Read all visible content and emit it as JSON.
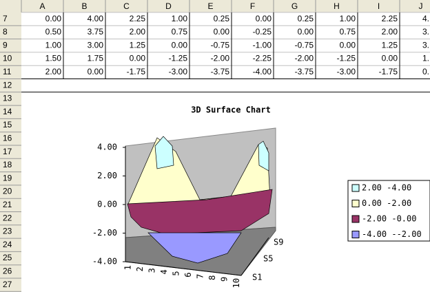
{
  "sheet": {
    "columns": [
      "A",
      "B",
      "C",
      "D",
      "E",
      "F",
      "G",
      "H",
      "I",
      "J"
    ],
    "row_numbers": [
      "7",
      "8",
      "9",
      "10",
      "11",
      "12",
      "13",
      "14",
      "15",
      "16",
      "17",
      "18",
      "19",
      "20",
      "21",
      "22",
      "23",
      "24",
      "25",
      "26",
      "27"
    ],
    "rows": [
      [
        "0.00",
        "4.00",
        "2.25",
        "1.00",
        "0.25",
        "0.00",
        "0.25",
        "1.00",
        "2.25",
        "4."
      ],
      [
        "0.50",
        "3.75",
        "2.00",
        "0.75",
        "0.00",
        "-0.25",
        "0.00",
        "0.75",
        "2.00",
        "3."
      ],
      [
        "1.00",
        "3.00",
        "1.25",
        "0.00",
        "-0.75",
        "-1.00",
        "-0.75",
        "0.00",
        "1.25",
        "3."
      ],
      [
        "1.50",
        "1.75",
        "0.00",
        "-1.25",
        "-2.00",
        "-2.25",
        "-2.00",
        "-1.25",
        "0.00",
        "1."
      ],
      [
        "2.00",
        "0.00",
        "-1.75",
        "-3.00",
        "-3.75",
        "-4.00",
        "-3.75",
        "-3.00",
        "-1.75",
        "0."
      ]
    ]
  },
  "chart": {
    "title": "3D Surface Chart",
    "z_ticks": [
      {
        "value": 4,
        "label": "4.00"
      },
      {
        "value": 2,
        "label": "2.00"
      },
      {
        "value": 0,
        "label": "0.00"
      },
      {
        "value": -2,
        "label": "-2.00"
      },
      {
        "value": -4,
        "label": "-4.00"
      }
    ],
    "x_labels": [
      "1",
      "2",
      "3",
      "4",
      "5",
      "6",
      "7",
      "8",
      "9",
      "10"
    ],
    "depth_labels": [
      "S1",
      "S5",
      "S9"
    ],
    "legend": [
      {
        "label": "2.00 -4.00",
        "color": "#ccffff"
      },
      {
        "label": "0.00 -2.00",
        "color": "#ffffcc"
      },
      {
        "label": "-2.00 -0.00",
        "color": "#993366"
      },
      {
        "label": "-4.00 --2.00",
        "color": "#9999ff"
      }
    ]
  }
}
